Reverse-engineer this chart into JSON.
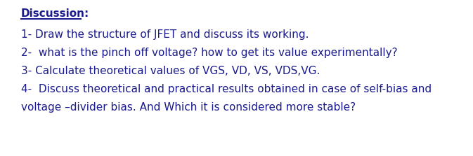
{
  "background_color": "#ffffff",
  "title_text": "Discussion:",
  "title_color": "#1a1a8c",
  "title_fontsize": 11.0,
  "line_color": "#1a1a8c",
  "line_fontsize": 11.0,
  "lines": [
    "1- Draw the structure of JFET and discuss its working.",
    "2-  what is the pinch off voltage? how to get its value experimentally?",
    "3- Calculate theoretical values of VGS, VD, VS, VDS,VG.",
    "4-  Discuss theoretical and practical results obtained in case of self-bias and",
    "voltage –divider bias. And Which it is considered more stable?"
  ],
  "fig_width": 6.73,
  "fig_height": 2.23,
  "dpi": 100
}
